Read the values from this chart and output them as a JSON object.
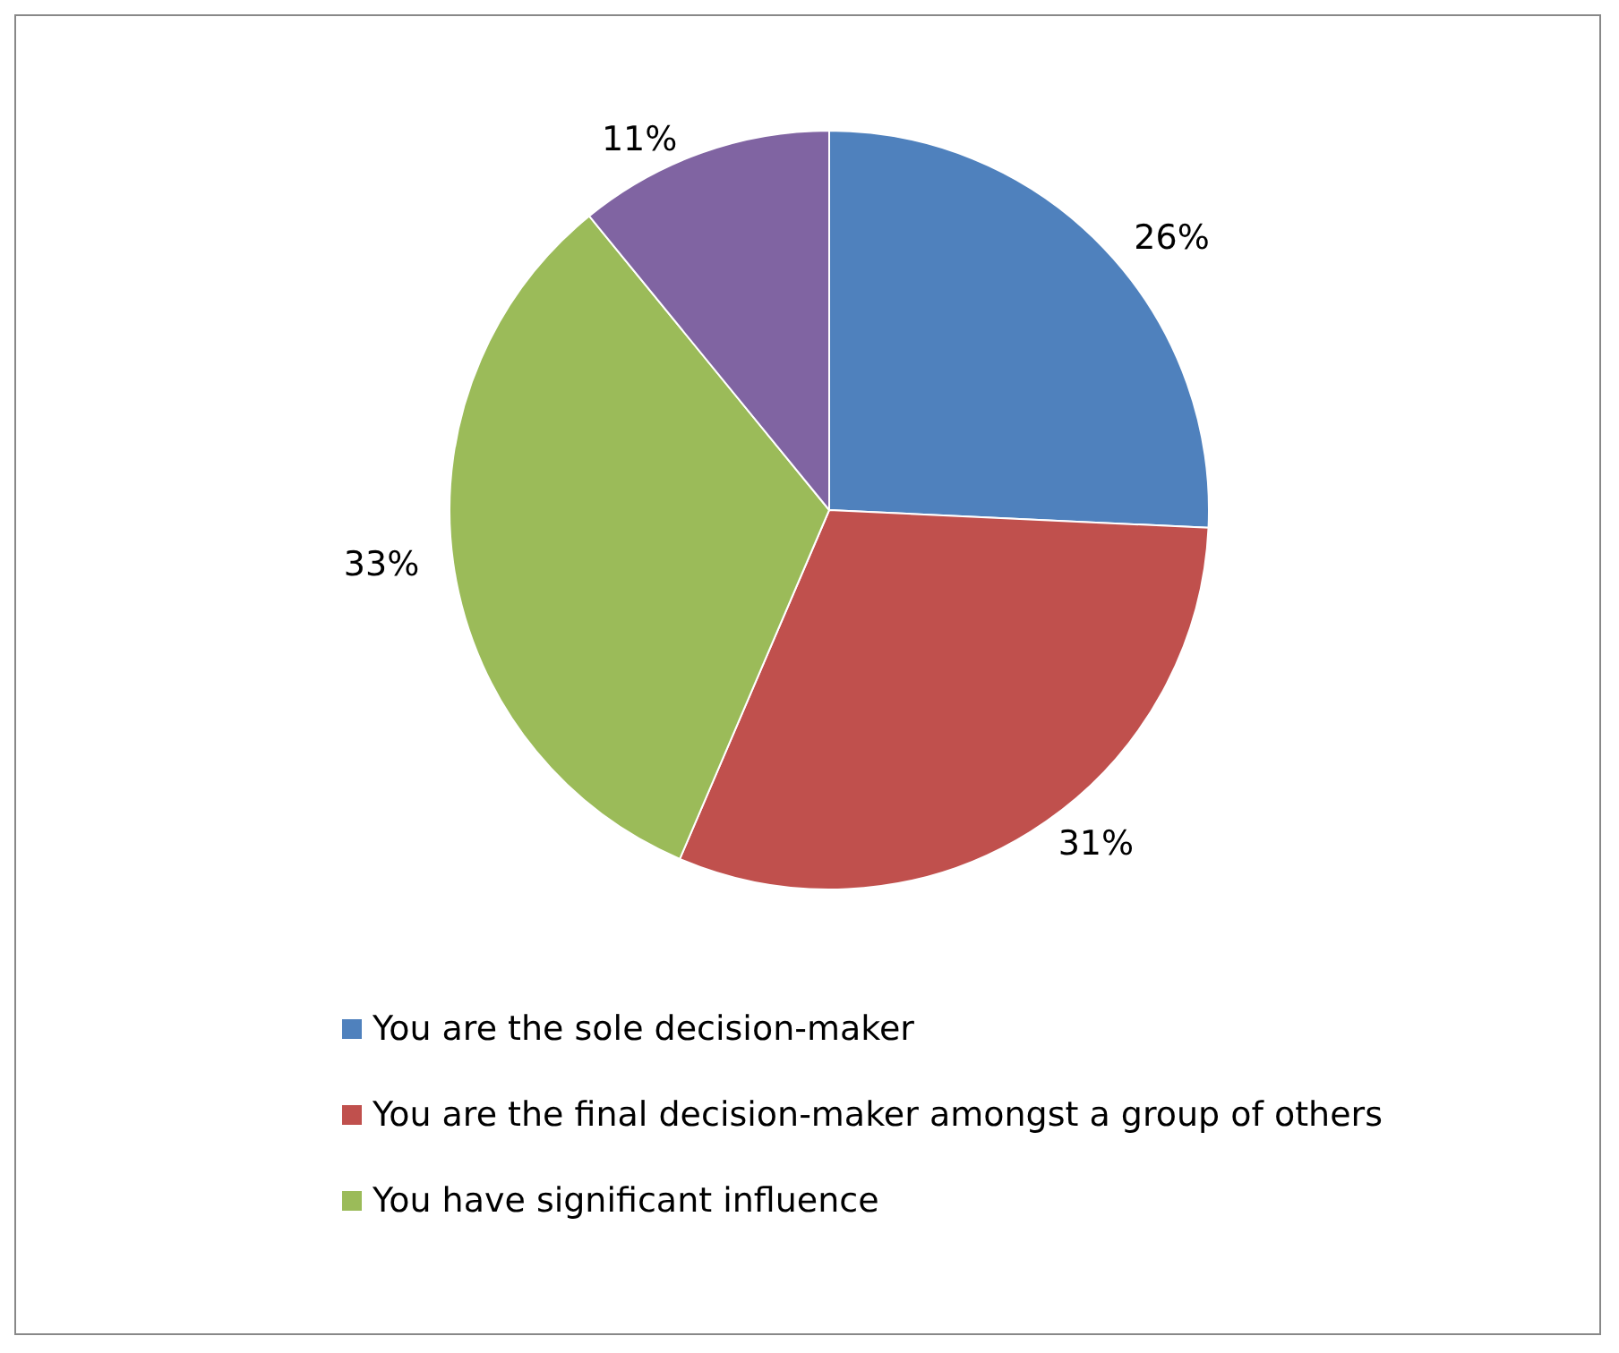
{
  "chart_data": {
    "type": "pie",
    "categories": [
      "You are the sole decision-maker",
      "You are the final decision-maker amongst a group of others",
      "You have significant influence",
      null
    ],
    "values": [
      26,
      31,
      33,
      11
    ],
    "colors": [
      "#4f81bd",
      "#c0504d",
      "#9bbb59",
      "#8064a2"
    ],
    "value_labels": [
      "26%",
      "31%",
      "33%",
      "11%"
    ],
    "legend": "bottom"
  }
}
